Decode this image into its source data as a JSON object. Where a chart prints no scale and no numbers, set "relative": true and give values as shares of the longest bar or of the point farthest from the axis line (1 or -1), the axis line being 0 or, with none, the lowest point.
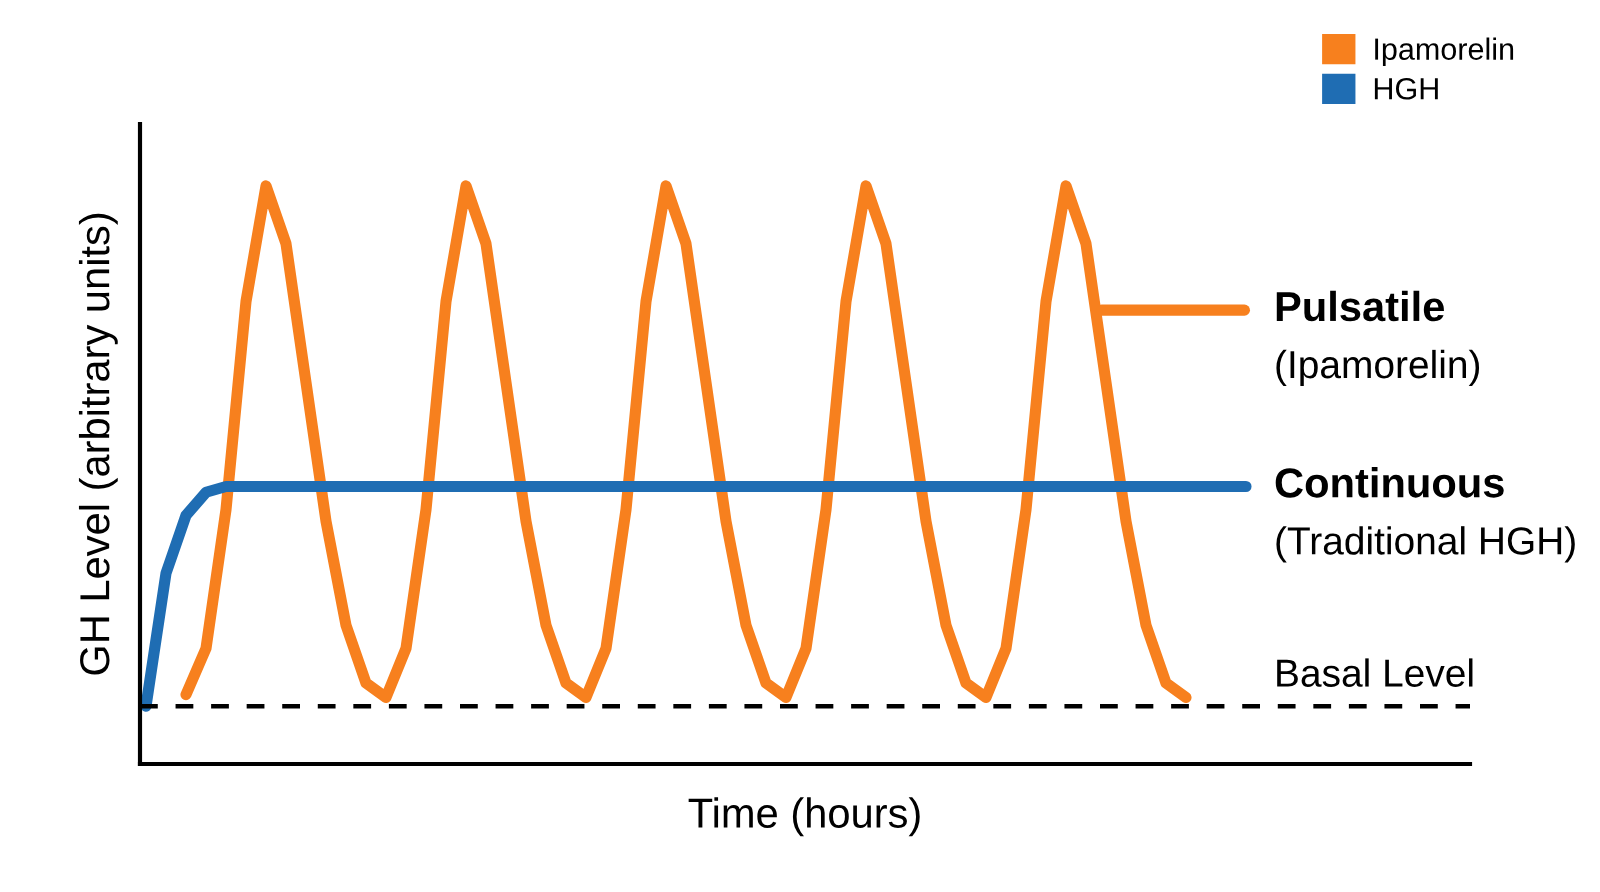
{
  "chart_data": {
    "type": "line",
    "relative": true,
    "xlabel": "Time (hours)",
    "ylabel": "GH Level (arbitrary units)",
    "categories": [
      null,
      null,
      null,
      null,
      null,
      null,
      null,
      null,
      null,
      null,
      null,
      null,
      null,
      null,
      null,
      null,
      null,
      null,
      null,
      null,
      null,
      null,
      null,
      null,
      null,
      null,
      null,
      null,
      null,
      null,
      null,
      null,
      null,
      null,
      null,
      null,
      null,
      null,
      null,
      null,
      null,
      null,
      null,
      null,
      null,
      null,
      null,
      null,
      null,
      null,
      null,
      null,
      null,
      null,
      null,
      null,
      null,
      null,
      null,
      null,
      null,
      null,
      null,
      null,
      null,
      null,
      null
    ],
    "series": [
      {
        "name": "Ipamorelin",
        "color": "#f7801e",
        "values": [
          null,
          null,
          0.12,
          0.2,
          0.44,
          0.8,
          1,
          0.9,
          0.66,
          0.42,
          0.24,
          0.14,
          0.115,
          0.2,
          0.44,
          0.8,
          1,
          0.9,
          0.66,
          0.42,
          0.24,
          0.14,
          0.115,
          0.2,
          0.44,
          0.8,
          1,
          0.9,
          0.66,
          0.42,
          0.24,
          0.14,
          0.115,
          0.2,
          0.44,
          0.8,
          1,
          0.9,
          0.66,
          0.42,
          0.24,
          0.14,
          0.115,
          0.2,
          0.44,
          0.8,
          1,
          0.9,
          0.66,
          0.42,
          0.24,
          0.14,
          0.115,
          null,
          null,
          null,
          null,
          null,
          null,
          null,
          null,
          null,
          null,
          null,
          null,
          null,
          null
        ]
      },
      {
        "name": "HGH",
        "color": "#1f6db3",
        "values": [
          0.1,
          0.33,
          0.43,
          0.47,
          0.48,
          0.48,
          0.48,
          0.48,
          0.48,
          0.48,
          0.48,
          0.48,
          0.48,
          0.48,
          0.48,
          0.48,
          0.48,
          0.48,
          0.48,
          0.48,
          0.48,
          0.48,
          0.48,
          0.48,
          0.48,
          0.48,
          0.48,
          0.48,
          0.48,
          0.48,
          0.48,
          0.48,
          0.48,
          0.48,
          0.48,
          0.48,
          0.48,
          0.48,
          0.48,
          0.48,
          0.48,
          0.48,
          0.48,
          0.48,
          0.48,
          0.48,
          0.48,
          0.48,
          0.48,
          0.48,
          0.48,
          0.48,
          0.48,
          0.48,
          0.48,
          0.48,
          null,
          null,
          null,
          null,
          null,
          null,
          null,
          null,
          null,
          null,
          null
        ]
      }
    ],
    "annotations": [
      "Pulsatile\n(Ipamorelin)",
      "Continuous\n(Traditional HGH)"
    ],
    "ref_lines": [
      {
        "axis": "y",
        "value": 0.1,
        "label": "Basal Level",
        "color": "#000000",
        "line_style": "dashed"
      }
    ],
    "legend": "top right",
    "line_style": "solid",
    "marker": "none"
  }
}
